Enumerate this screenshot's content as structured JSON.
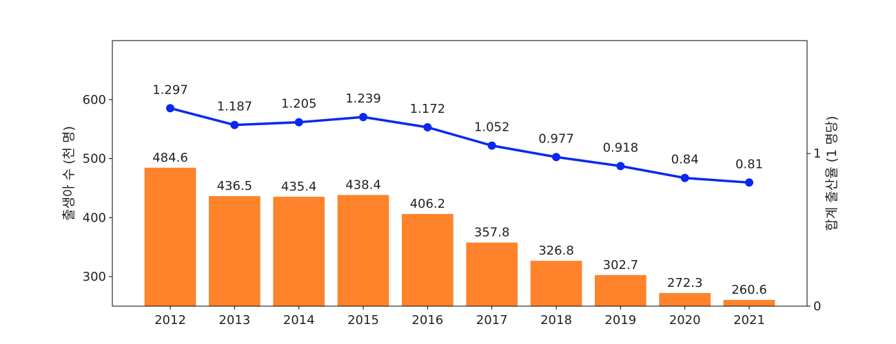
{
  "chart_data": {
    "type": "bar+line",
    "categories": [
      "2012",
      "2013",
      "2014",
      "2015",
      "2016",
      "2017",
      "2018",
      "2019",
      "2020",
      "2021"
    ],
    "series": [
      {
        "type": "bar",
        "axis": "left",
        "color": "#ff832b",
        "values": [
          484.6,
          436.5,
          435.4,
          438.4,
          406.2,
          357.8,
          326.8,
          302.7,
          272.3,
          260.6
        ],
        "labels": [
          "484.6",
          "436.5",
          "435.4",
          "438.4",
          "406.2",
          "357.8",
          "326.8",
          "302.7",
          "272.3",
          "260.6"
        ]
      },
      {
        "type": "line",
        "axis": "right",
        "color": "#0a28f0",
        "values": [
          1.297,
          1.187,
          1.205,
          1.239,
          1.172,
          1.052,
          0.977,
          0.918,
          0.84,
          0.81
        ],
        "labels": [
          "1.297",
          "1.187",
          "1.205",
          "1.239",
          "1.172",
          "1.052",
          "0.977",
          "0.918",
          "0.84",
          "0.81"
        ]
      }
    ],
    "ylabel": "출생아 수 (천 명)",
    "ylabel_right": "합계 출산율 (1 명당)",
    "ylim": [
      250,
      700
    ],
    "ylim_right": [
      0,
      1.74
    ],
    "yticks": [
      300,
      400,
      500,
      600
    ],
    "yticks_right": [
      0,
      1
    ],
    "ytick_labels": [
      "300",
      "400",
      "500",
      "600"
    ],
    "ytick_labels_right": [
      "0",
      "1"
    ],
    "grid": false
  }
}
